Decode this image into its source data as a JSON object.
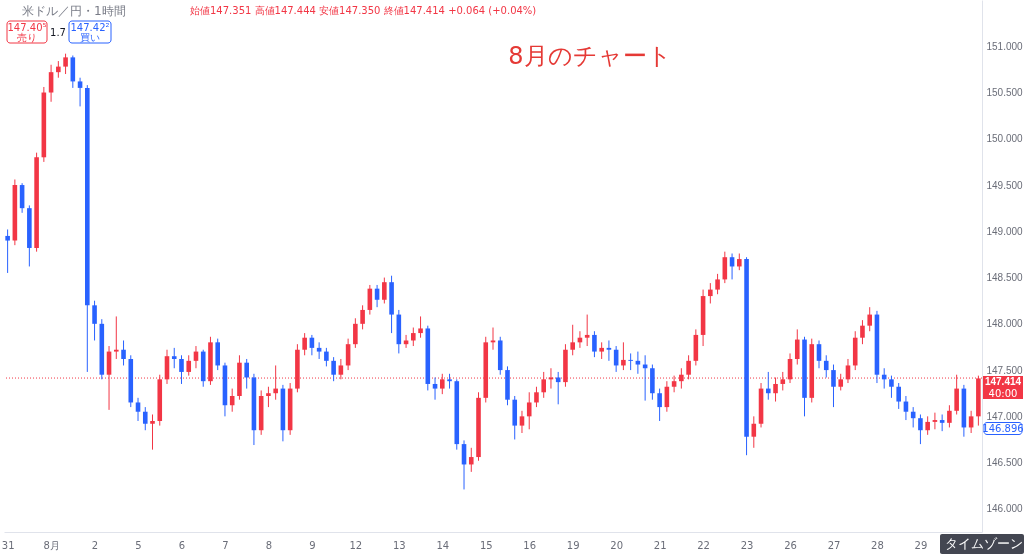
{
  "chart_data": {
    "type": "candlestick",
    "title": "米ドル／円・1時間",
    "subtitle": "始値147.351 高値147.444 安値147.350 終値147.414 +0.064 (+0.04%)",
    "categories": [
      "31",
      null,
      null,
      null,
      null,
      null,
      "8月",
      null,
      null,
      null,
      null,
      null,
      "2",
      null,
      null,
      null,
      null,
      null,
      "5",
      null,
      null,
      null,
      null,
      null,
      "6",
      null,
      null,
      null,
      null,
      null,
      "7",
      null,
      null,
      null,
      null,
      null,
      "8",
      null,
      null,
      null,
      null,
      null,
      "9",
      null,
      null,
      null,
      null,
      null,
      "12",
      null,
      null,
      null,
      null,
      null,
      "13",
      null,
      null,
      null,
      null,
      null,
      "14",
      null,
      null,
      null,
      null,
      null,
      "15",
      null,
      null,
      null,
      null,
      null,
      "16",
      null,
      null,
      null,
      null,
      null,
      "19",
      null,
      null,
      null,
      null,
      null,
      "20",
      null,
      null,
      null,
      null,
      null,
      "21",
      null,
      null,
      null,
      null,
      null,
      "22",
      null,
      null,
      null,
      null,
      null,
      "23",
      null,
      null,
      null,
      null,
      null,
      "26",
      null,
      null,
      null,
      null,
      null,
      "27",
      null,
      null,
      null,
      null,
      null,
      "28",
      null,
      null,
      null,
      null,
      null,
      "29",
      null,
      null,
      null,
      null,
      null,
      null,
      null,
      null
    ],
    "ohlc": [
      [
        148.95,
        149.02,
        148.55,
        148.9
      ],
      [
        148.9,
        149.56,
        148.85,
        149.5
      ],
      [
        149.5,
        149.52,
        149.2,
        149.25
      ],
      [
        149.25,
        149.28,
        148.62,
        148.82
      ],
      [
        148.82,
        149.85,
        148.78,
        149.8
      ],
      [
        149.8,
        150.56,
        149.75,
        150.5
      ],
      [
        150.5,
        150.8,
        150.4,
        150.72
      ],
      [
        150.72,
        150.84,
        150.66,
        150.78
      ],
      [
        150.78,
        150.92,
        150.7,
        150.88
      ],
      [
        150.88,
        150.9,
        150.55,
        150.62
      ],
      [
        150.62,
        150.66,
        150.35,
        150.55
      ],
      [
        150.55,
        150.58,
        147.48,
        148.2
      ],
      [
        148.2,
        148.25,
        147.82,
        148.0
      ],
      [
        148.0,
        148.05,
        147.4,
        147.45
      ],
      [
        147.45,
        147.76,
        147.07,
        147.7
      ],
      [
        147.7,
        148.08,
        147.62,
        147.72
      ],
      [
        147.72,
        147.82,
        147.55,
        147.62
      ],
      [
        147.62,
        147.66,
        147.1,
        147.15
      ],
      [
        147.15,
        147.2,
        146.95,
        147.05
      ],
      [
        147.05,
        147.1,
        146.85,
        146.92
      ],
      [
        146.92,
        147.02,
        146.64,
        146.95
      ],
      [
        146.95,
        147.45,
        146.9,
        147.4
      ],
      [
        147.4,
        147.72,
        147.35,
        147.65
      ],
      [
        147.65,
        147.74,
        147.52,
        147.62
      ],
      [
        147.62,
        147.66,
        147.35,
        147.48
      ],
      [
        147.48,
        147.66,
        147.44,
        147.6
      ],
      [
        147.6,
        147.76,
        147.52,
        147.7
      ],
      [
        147.7,
        147.72,
        147.32,
        147.38
      ],
      [
        147.38,
        147.86,
        147.34,
        147.8
      ],
      [
        147.8,
        147.84,
        147.5,
        147.55
      ],
      [
        147.55,
        147.58,
        147.0,
        147.12
      ],
      [
        147.12,
        147.3,
        147.05,
        147.22
      ],
      [
        147.22,
        147.66,
        147.18,
        147.58
      ],
      [
        147.58,
        147.62,
        147.3,
        147.42
      ],
      [
        147.42,
        147.46,
        146.69,
        146.85
      ],
      [
        146.85,
        147.28,
        146.8,
        147.22
      ],
      [
        147.22,
        147.32,
        147.1,
        147.25
      ],
      [
        147.25,
        147.55,
        147.18,
        147.3
      ],
      [
        147.3,
        147.34,
        146.73,
        146.85
      ],
      [
        146.85,
        147.36,
        146.8,
        147.3
      ],
      [
        147.3,
        147.78,
        147.26,
        147.72
      ],
      [
        147.72,
        147.9,
        147.66,
        147.85
      ],
      [
        147.85,
        147.88,
        147.66,
        147.74
      ],
      [
        147.74,
        147.8,
        147.62,
        147.7
      ],
      [
        147.7,
        147.74,
        147.54,
        147.6
      ],
      [
        147.6,
        147.64,
        147.38,
        147.45
      ],
      [
        147.45,
        147.62,
        147.4,
        147.55
      ],
      [
        147.55,
        147.84,
        147.5,
        147.78
      ],
      [
        147.78,
        148.06,
        147.74,
        148.0
      ],
      [
        148.0,
        148.2,
        147.94,
        148.15
      ],
      [
        148.15,
        148.42,
        148.1,
        148.38
      ],
      [
        148.38,
        148.42,
        148.18,
        148.26
      ],
      [
        148.26,
        148.5,
        148.22,
        148.45
      ],
      [
        148.45,
        148.52,
        147.9,
        148.1
      ],
      [
        148.1,
        148.15,
        147.68,
        147.78
      ],
      [
        147.78,
        147.88,
        147.74,
        147.82
      ],
      [
        147.82,
        147.96,
        147.76,
        147.9
      ],
      [
        147.9,
        148.08,
        147.85,
        147.95
      ],
      [
        147.95,
        147.98,
        147.28,
        147.35
      ],
      [
        147.35,
        147.42,
        147.18,
        147.3
      ],
      [
        147.3,
        147.46,
        147.24,
        147.4
      ],
      [
        147.4,
        147.46,
        147.3,
        147.38
      ],
      [
        147.38,
        147.4,
        146.64,
        146.7
      ],
      [
        146.7,
        146.74,
        146.21,
        146.48
      ],
      [
        146.48,
        146.66,
        146.4,
        146.56
      ],
      [
        146.56,
        147.26,
        146.52,
        147.2
      ],
      [
        147.2,
        147.86,
        147.15,
        147.8
      ],
      [
        147.8,
        147.96,
        147.72,
        147.82
      ],
      [
        147.82,
        147.86,
        147.45,
        147.5
      ],
      [
        147.5,
        147.54,
        147.12,
        147.18
      ],
      [
        147.18,
        147.22,
        146.75,
        146.9
      ],
      [
        146.9,
        147.06,
        146.82,
        147.0
      ],
      [
        147.0,
        147.26,
        146.86,
        147.15
      ],
      [
        147.15,
        147.32,
        147.1,
        147.26
      ],
      [
        147.26,
        147.48,
        147.2,
        147.4
      ],
      [
        147.4,
        147.52,
        147.3,
        147.42
      ],
      [
        147.42,
        147.48,
        147.13,
        147.37
      ],
      [
        147.37,
        147.78,
        147.32,
        147.72
      ],
      [
        147.72,
        147.99,
        147.66,
        147.8
      ],
      [
        147.8,
        147.92,
        147.74,
        147.85
      ],
      [
        147.85,
        148.1,
        147.76,
        147.88
      ],
      [
        147.88,
        147.92,
        147.64,
        147.7
      ],
      [
        147.7,
        147.8,
        147.62,
        147.74
      ],
      [
        147.74,
        147.82,
        147.6,
        147.72
      ],
      [
        147.72,
        147.76,
        147.48,
        147.55
      ],
      [
        147.55,
        147.8,
        147.5,
        147.61
      ],
      [
        147.61,
        147.68,
        147.5,
        147.6
      ],
      [
        147.6,
        147.7,
        147.46,
        147.56
      ],
      [
        147.56,
        147.66,
        147.17,
        147.52
      ],
      [
        147.52,
        147.56,
        147.18,
        147.25
      ],
      [
        147.25,
        147.3,
        146.95,
        147.1
      ],
      [
        147.1,
        147.38,
        147.05,
        147.32
      ],
      [
        147.32,
        147.44,
        147.26,
        147.38
      ],
      [
        147.38,
        147.52,
        147.3,
        147.45
      ],
      [
        147.45,
        147.66,
        147.4,
        147.6
      ],
      [
        147.6,
        147.94,
        147.55,
        147.88
      ],
      [
        147.88,
        148.37,
        147.76,
        148.3
      ],
      [
        148.3,
        148.44,
        148.22,
        148.37
      ],
      [
        148.37,
        148.54,
        148.32,
        148.48
      ],
      [
        148.48,
        148.78,
        148.44,
        148.72
      ],
      [
        148.72,
        148.76,
        148.48,
        148.62
      ],
      [
        148.62,
        148.76,
        148.58,
        148.7
      ],
      [
        148.7,
        148.72,
        146.58,
        146.78
      ],
      [
        146.78,
        147.0,
        146.66,
        146.92
      ],
      [
        146.92,
        147.36,
        146.88,
        147.3
      ],
      [
        147.3,
        147.48,
        147.18,
        147.25
      ],
      [
        147.25,
        147.42,
        147.16,
        147.35
      ],
      [
        147.35,
        147.48,
        147.28,
        147.4
      ],
      [
        147.4,
        147.68,
        147.36,
        147.62
      ],
      [
        147.62,
        147.94,
        147.56,
        147.83
      ],
      [
        147.83,
        147.86,
        147.0,
        147.2
      ],
      [
        147.2,
        147.84,
        147.15,
        147.78
      ],
      [
        147.78,
        147.82,
        147.52,
        147.6
      ],
      [
        147.6,
        147.66,
        147.42,
        147.5
      ],
      [
        147.5,
        147.56,
        147.1,
        147.32
      ],
      [
        147.32,
        147.46,
        147.28,
        147.4
      ],
      [
        147.4,
        147.62,
        147.36,
        147.55
      ],
      [
        147.55,
        147.92,
        147.5,
        147.85
      ],
      [
        147.85,
        148.04,
        147.78,
        147.98
      ],
      [
        147.98,
        148.18,
        147.92,
        148.1
      ],
      [
        148.1,
        148.14,
        147.36,
        147.45
      ],
      [
        147.45,
        147.52,
        147.3,
        147.4
      ],
      [
        147.4,
        147.44,
        147.2,
        147.32
      ],
      [
        147.32,
        147.36,
        147.08,
        147.16
      ],
      [
        147.16,
        147.22,
        146.96,
        147.05
      ],
      [
        147.05,
        147.1,
        146.88,
        146.98
      ],
      [
        146.98,
        147.02,
        146.7,
        146.85
      ],
      [
        146.85,
        147.0,
        146.8,
        146.94
      ],
      [
        146.94,
        147.04,
        146.86,
        146.96
      ],
      [
        146.96,
        147.02,
        146.84,
        146.93
      ],
      [
        146.93,
        147.12,
        146.88,
        147.06
      ],
      [
        147.06,
        147.45,
        147.02,
        147.3
      ],
      [
        147.3,
        147.34,
        146.78,
        146.88
      ],
      [
        146.88,
        147.06,
        146.82,
        147.0
      ],
      [
        147.0,
        147.44,
        146.9,
        147.41
      ]
    ],
    "colors": [
      "#2962ff",
      "#f23645",
      "#2962ff",
      "#2962ff",
      "#f23645",
      "#f23645",
      "#f23645",
      "#f23645",
      "#f23645",
      "#2962ff",
      "#2962ff",
      "#2962ff",
      "#2962ff",
      "#2962ff",
      "#f23645",
      "#f23645",
      "#2962ff",
      "#2962ff",
      "#2962ff",
      "#2962ff",
      "#f23645",
      "#f23645",
      "#f23645",
      "#2962ff",
      "#2962ff",
      "#f23645",
      "#f23645",
      "#2962ff",
      "#f23645",
      "#2962ff",
      "#2962ff",
      "#f23645",
      "#f23645",
      "#2962ff",
      "#2962ff",
      "#f23645",
      "#f23645",
      "#f23645",
      "#2962ff",
      "#f23645",
      "#f23645",
      "#f23645",
      "#2962ff",
      "#2962ff",
      "#2962ff",
      "#2962ff",
      "#f23645",
      "#f23645",
      "#f23645",
      "#f23645",
      "#f23645",
      "#2962ff",
      "#f23645",
      "#2962ff",
      "#2962ff",
      "#f23645",
      "#f23645",
      "#f23645",
      "#2962ff",
      "#2962ff",
      "#f23645",
      "#2962ff",
      "#2962ff",
      "#2962ff",
      "#f23645",
      "#f23645",
      "#f23645",
      "#f23645",
      "#2962ff",
      "#2962ff",
      "#2962ff",
      "#f23645",
      "#f23645",
      "#f23645",
      "#f23645",
      "#f23645",
      "#2962ff",
      "#f23645",
      "#f23645",
      "#f23645",
      "#f23645",
      "#2962ff",
      "#f23645",
      "#2962ff",
      "#2962ff",
      "#f23645",
      "#2962ff",
      "#2962ff",
      "#2962ff",
      "#2962ff",
      "#2962ff",
      "#f23645",
      "#f23645",
      "#f23645",
      "#f23645",
      "#f23645",
      "#f23645",
      "#f23645",
      "#f23645",
      "#f23645",
      "#2962ff",
      "#f23645",
      "#2962ff",
      "#f23645",
      "#f23645",
      "#2962ff",
      "#f23645",
      "#f23645",
      "#f23645",
      "#f23645",
      "#2962ff",
      "#f23645",
      "#2962ff",
      "#2962ff",
      "#2962ff",
      "#f23645",
      "#f23645",
      "#f23645",
      "#f23645",
      "#f23645",
      "#2962ff",
      "#2962ff",
      "#2962ff",
      "#2962ff",
      "#2962ff",
      "#2962ff",
      "#2962ff",
      "#f23645",
      "#f23645",
      "#2962ff",
      "#f23645",
      "#f23645",
      "#2962ff",
      "#f23645",
      "#f23645"
    ],
    "ylim": [
      145.75,
      151.5
    ],
    "yticks": [
      {
        "value": 146,
        "label": "146.000"
      },
      {
        "value": 146.5,
        "label": "146.500"
      },
      {
        "value": 147,
        "label": "147.000"
      },
      {
        "value": 147.5,
        "label": "147.500"
      },
      {
        "value": 148,
        "label": "148.000"
      },
      {
        "value": 148.5,
        "label": "148.500"
      },
      {
        "value": 149,
        "label": "149.000"
      },
      {
        "value": 149.5,
        "label": "149.500"
      },
      {
        "value": 150,
        "label": "150.000"
      },
      {
        "value": 150.5,
        "label": "150.500"
      },
      {
        "value": 151,
        "label": "151.000"
      }
    ],
    "ref_lines": [
      {
        "axis": "y",
        "value": 147.414,
        "label": "147.414",
        "color": "#f23645",
        "line_style": "dotted"
      }
    ],
    "annotations": [
      "147.40⁵",
      "売り",
      "1.7",
      "147.42²",
      "買い",
      "8月のチャート",
      "タイムゾーン",
      "40:00",
      "146.896"
    ]
  }
}
